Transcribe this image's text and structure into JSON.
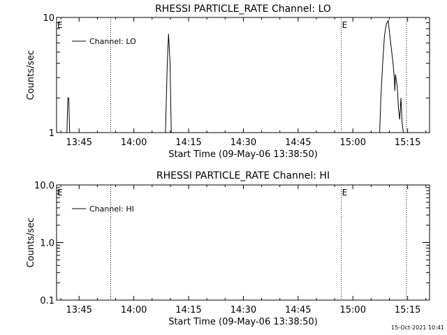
{
  "footer": {
    "timestamp": "15-Oct-2021 10:41"
  },
  "chart_data": [
    {
      "type": "line",
      "title": "RHESSI PARTICLE_RATE Channel: LO",
      "xlabel": "Start Time (09-May-06 13:38:50)",
      "ylabel": "Counts/sec",
      "y_scale": "log",
      "ylim": [
        1,
        10
      ],
      "y_ticks": [
        {
          "v": 1,
          "label": "1"
        },
        {
          "v": 10,
          "label": "10"
        }
      ],
      "xlim": [
        "13:38:50",
        "15:21:00"
      ],
      "x_ticks": [
        {
          "t": "13:45",
          "label": "13:45"
        },
        {
          "t": "14:00",
          "label": "14:00"
        },
        {
          "t": "14:15",
          "label": "14:15"
        },
        {
          "t": "14:30",
          "label": "14:30"
        },
        {
          "t": "14:45",
          "label": "14:45"
        },
        {
          "t": "15:00",
          "label": "15:00"
        },
        {
          "t": "15:15",
          "label": "15:15"
        }
      ],
      "eclipse_lines": [
        {
          "t": "13:53:40",
          "label": ""
        },
        {
          "t": "14:56:50",
          "label": "E"
        },
        {
          "t": "15:14:40",
          "label": ""
        }
      ],
      "left_marker": "E",
      "legend": {
        "position": "top-left",
        "entries": [
          "Channel: LO"
        ]
      },
      "series": [
        {
          "name": "Channel: LO",
          "points": [
            [
              "13:41:40",
              1
            ],
            [
              "13:41:55",
              2
            ],
            [
              "13:42:10",
              2
            ],
            [
              "13:42:25",
              1
            ],
            [
              "14:08:40",
              1
            ],
            [
              "14:09:10",
              4
            ],
            [
              "14:09:30",
              7.2
            ],
            [
              "14:09:55",
              4
            ],
            [
              "14:10:15",
              1
            ],
            [
              "15:07:20",
              1
            ],
            [
              "15:07:40",
              2
            ],
            [
              "15:08:10",
              4
            ],
            [
              "15:08:40",
              7
            ],
            [
              "15:09:10",
              8.8
            ],
            [
              "15:09:40",
              9.4
            ],
            [
              "15:10:00",
              7.5
            ],
            [
              "15:10:30",
              5.5
            ],
            [
              "15:11:00",
              4
            ],
            [
              "15:11:20",
              3
            ],
            [
              "15:11:30",
              2.3
            ],
            [
              "15:11:40",
              3.2
            ],
            [
              "15:12:10",
              2.5
            ],
            [
              "15:12:30",
              1.6
            ],
            [
              "15:12:50",
              1.3
            ],
            [
              "15:13:10",
              2
            ],
            [
              "15:13:30",
              1.2
            ],
            [
              "15:13:50",
              1
            ]
          ]
        }
      ]
    },
    {
      "type": "line",
      "title": "RHESSI PARTICLE_RATE Channel: HI",
      "xlabel": "Start Time (09-May-06 13:38:50)",
      "ylabel": "Counts/sec",
      "y_scale": "log",
      "ylim": [
        0.1,
        10
      ],
      "y_ticks": [
        {
          "v": 0.1,
          "label": "0.1"
        },
        {
          "v": 1,
          "label": "1.0"
        },
        {
          "v": 10,
          "label": "10.0"
        }
      ],
      "xlim": [
        "13:38:50",
        "15:21:00"
      ],
      "x_ticks": [
        {
          "t": "13:45",
          "label": "13:45"
        },
        {
          "t": "14:00",
          "label": "14:00"
        },
        {
          "t": "14:15",
          "label": "14:15"
        },
        {
          "t": "14:30",
          "label": "14:30"
        },
        {
          "t": "14:45",
          "label": "14:45"
        },
        {
          "t": "15:00",
          "label": "15:00"
        },
        {
          "t": "15:15",
          "label": "15:15"
        }
      ],
      "eclipse_lines": [
        {
          "t": "13:53:40",
          "label": ""
        },
        {
          "t": "14:56:50",
          "label": "E"
        },
        {
          "t": "15:14:40",
          "label": ""
        }
      ],
      "left_marker": "E",
      "legend": {
        "position": "top-left",
        "entries": [
          "Channel: HI"
        ]
      },
      "series": [
        {
          "name": "Channel: HI",
          "points": []
        }
      ]
    }
  ]
}
